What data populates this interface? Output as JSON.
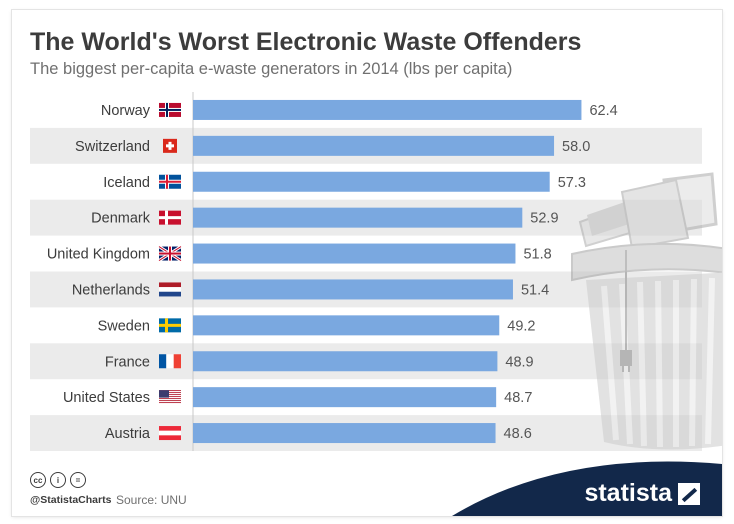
{
  "header": {
    "title": "The World's Worst Electronic Waste Offenders",
    "subtitle": "The biggest per-capita e-waste generators in 2014 (lbs per capita)"
  },
  "chart_data": {
    "type": "bar",
    "orientation": "horizontal",
    "title": "The World's Worst Electronic Waste Offenders",
    "subtitle": "The biggest per-capita e-waste generators in 2014 (lbs per capita)",
    "categories": [
      "Norway",
      "Switzerland",
      "Iceland",
      "Denmark",
      "United Kingdom",
      "Netherlands",
      "Sweden",
      "France",
      "United States",
      "Austria"
    ],
    "values": [
      62.4,
      58.0,
      57.3,
      52.9,
      51.8,
      51.4,
      49.2,
      48.9,
      48.7,
      48.6
    ],
    "value_labels": [
      "62.4",
      "58.0",
      "57.3",
      "52.9",
      "51.8",
      "51.4",
      "49.2",
      "48.9",
      "48.7",
      "48.6"
    ],
    "xlim": [
      0,
      80
    ],
    "unit": "lbs per capita",
    "bar_color": "#7aa8e0",
    "stripe_color": "#ebebeb",
    "flag_icons": [
      "norway-flag-icon",
      "switzerland-flag-icon",
      "iceland-flag-icon",
      "denmark-flag-icon",
      "united-kingdom-flag-icon",
      "netherlands-flag-icon",
      "sweden-flag-icon",
      "france-flag-icon",
      "united-states-flag-icon",
      "austria-flag-icon"
    ]
  },
  "illustration": {
    "icon": "trash-can-with-electronics-icon"
  },
  "footer": {
    "license_icons": [
      "cc-icon",
      "by-icon",
      "nd-icon"
    ],
    "license_glyphs": [
      "cc",
      "i",
      "="
    ],
    "handle": "@StatistaCharts",
    "source": "Source: UNU",
    "brand": "statista",
    "brand_color": "#12284a"
  }
}
